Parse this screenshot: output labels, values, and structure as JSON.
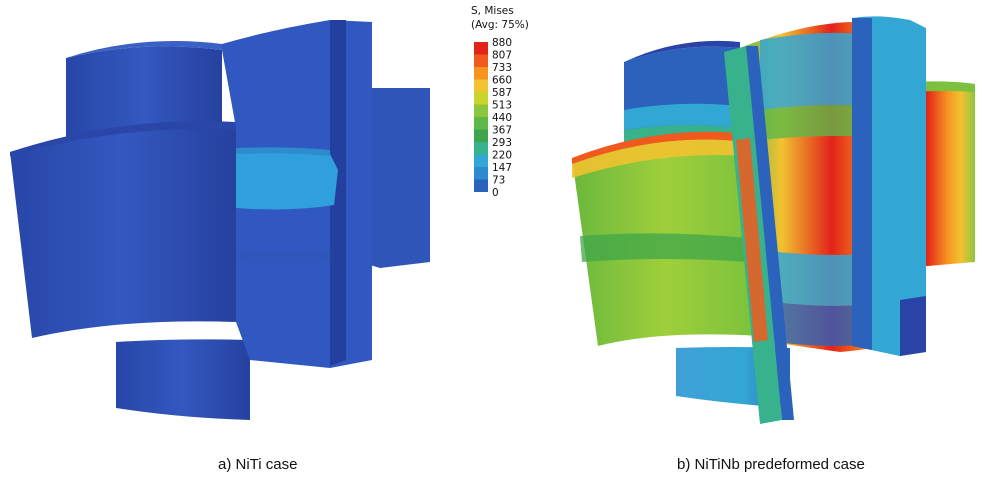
{
  "legend": {
    "title_line1": "S, Mises",
    "title_line2": "(Avg: 75%)",
    "values": [
      "880",
      "807",
      "733",
      "660",
      "587",
      "513",
      "440",
      "367",
      "293",
      "220",
      "147",
      "73",
      "0"
    ],
    "colors": [
      "#e2231a",
      "#f05a1e",
      "#f79420",
      "#f2c230",
      "#c8d52c",
      "#8cc63e",
      "#5db848",
      "#3fa54a",
      "#37b28c",
      "#33a7d3",
      "#2d8bd0",
      "#2b62bc",
      "#2a43a6"
    ]
  },
  "captions": {
    "a": "a) NiTi case",
    "b": "b) NiTiNb predeformed case"
  },
  "colors": {
    "niti_body": "#2d4fb0",
    "niti_dark": "#23399a",
    "niti_light_band": "#2fa0dc"
  }
}
